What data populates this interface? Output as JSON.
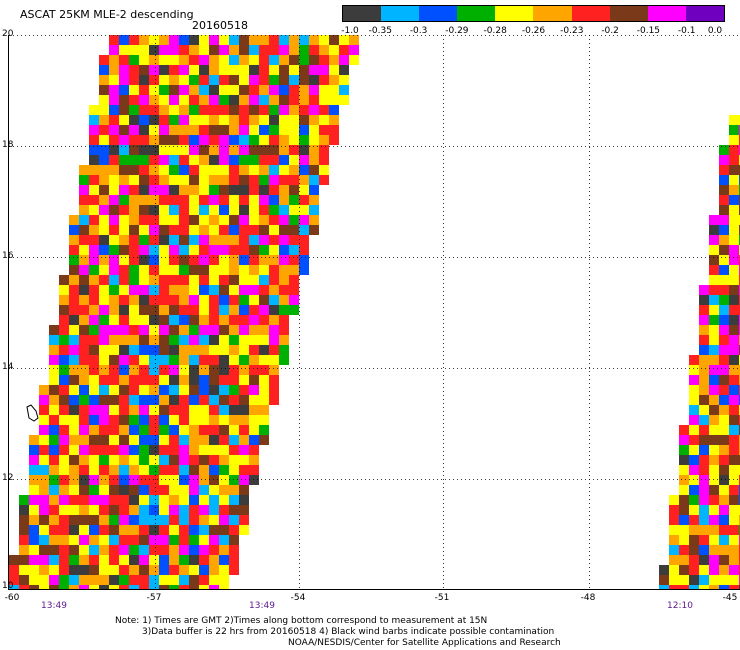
{
  "header": {
    "title": "ASCAT 25KM MLE-2 descending",
    "date": "20160518"
  },
  "colorbar": {
    "colors": [
      "#3c3c3c",
      "#00b4ff",
      "#0050ff",
      "#00b000",
      "#ffff00",
      "#ffa500",
      "#ff2020",
      "#7a3a1a",
      "#ff00ff",
      "#7000c0"
    ],
    "labels": [
      "-1.0",
      "-0.35",
      "-0.3",
      "-0.29",
      "-0.28",
      "-0.26",
      "-0.23",
      "-0.2",
      "-0.15",
      "-0.1",
      "0.0"
    ]
  },
  "map": {
    "lon_range": [
      -60,
      -45
    ],
    "lat_range": [
      10,
      20
    ],
    "lat_labels": [
      "20",
      "18",
      "16",
      "14",
      "12",
      "10"
    ],
    "lon_labels": [
      "-60",
      "-57",
      "-54",
      "-51",
      "-48",
      "-45"
    ],
    "pass_times": [
      "13:49",
      "13:49",
      "12:10"
    ]
  },
  "notes": {
    "line1": "Note: 1) Times are GMT 2)Times along bottom correspond to measurement at 15N",
    "line2": "3)Data buffer is 22 hrs from 20160518 4) Black wind barbs indicate possible contamination",
    "line3": "NOAA/NESDIS/Center for Satellite Applications and Research"
  }
}
